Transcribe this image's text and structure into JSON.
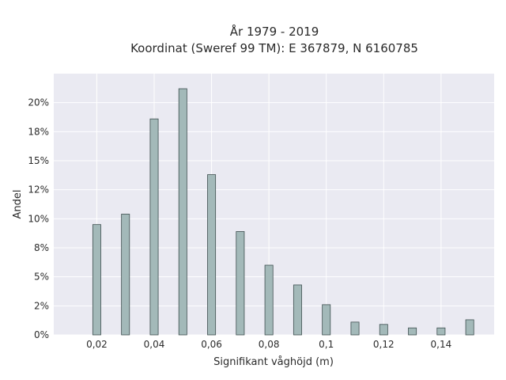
{
  "chart_data": {
    "type": "bar",
    "title": "År 1979 - 2019",
    "subtitle": "Koordinat (Sweref 99 TM): E 367879, N 6160785",
    "xlabel": "Signifikant våghöjd (m)",
    "ylabel": "Andel",
    "x": [
      0.02,
      0.03,
      0.04,
      0.05,
      0.06,
      0.07,
      0.08,
      0.09,
      0.1,
      0.11,
      0.12,
      0.13,
      0.14,
      0.15
    ],
    "values": [
      9.5,
      10.4,
      18.6,
      21.2,
      13.8,
      8.9,
      6.0,
      4.3,
      2.6,
      1.1,
      0.9,
      0.6,
      0.6,
      1.3
    ],
    "xlim": [
      0.005,
      0.1585
    ],
    "ylim": [
      0,
      22.5
    ],
    "xticks": [
      0.02,
      0.04,
      0.06,
      0.08,
      0.1,
      0.12,
      0.14
    ],
    "xtick_labels": [
      "0,02",
      "0,04",
      "0,06",
      "0,08",
      "0,1",
      "0,12",
      "0,14"
    ],
    "yticks": [
      0,
      2.5,
      5,
      7.5,
      10,
      12.5,
      15,
      17.5,
      20
    ],
    "ytick_labels": [
      "0%",
      "2%",
      "5%",
      "8%",
      "10%",
      "12%",
      "15%",
      "18%",
      "20%"
    ],
    "bar_width": 0.0028,
    "grid": true,
    "legend": "none",
    "colors": {
      "bar_fill": "#a3b9b9",
      "bar_stroke": "#3e4f4f",
      "plot_bg": "#eaeaf2",
      "grid": "#ffffff"
    }
  }
}
